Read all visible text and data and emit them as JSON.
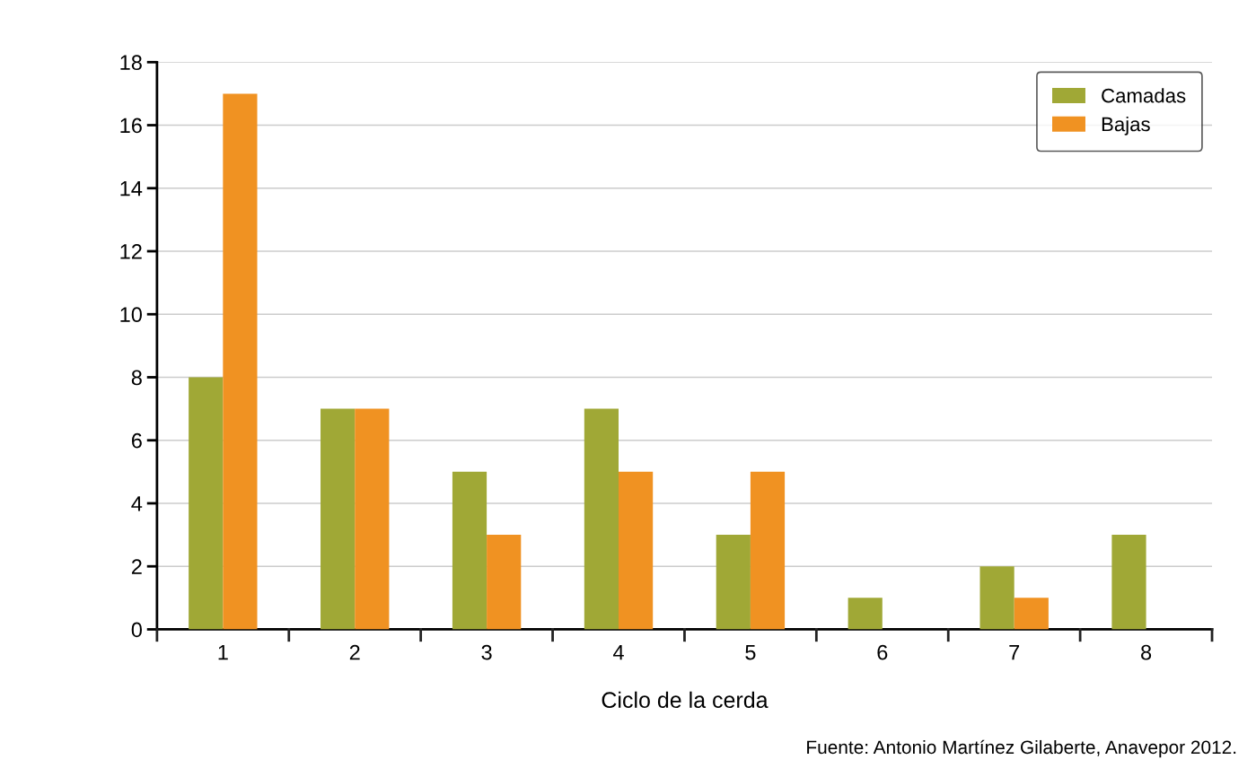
{
  "chart_data": {
    "type": "bar",
    "xlabel": "Ciclo de la cerda",
    "categories": [
      "1",
      "2",
      "3",
      "4",
      "5",
      "6",
      "7",
      "8"
    ],
    "series": [
      {
        "name": "Camadas",
        "color": "#a0a836",
        "values": [
          8,
          7,
          5,
          7,
          3,
          1,
          2,
          3
        ]
      },
      {
        "name": "Bajas",
        "color": "#f09222",
        "values": [
          17,
          7,
          3,
          5,
          5,
          null,
          1,
          null
        ]
      }
    ],
    "ylim": [
      0,
      18
    ],
    "yticks": [
      0,
      2,
      4,
      6,
      8,
      10,
      12,
      14,
      16,
      18
    ],
    "grid": "y",
    "legend": "top right",
    "annotations": [
      "Fuente: Antonio Martínez Gilaberte, Anavepor 2012."
    ]
  }
}
